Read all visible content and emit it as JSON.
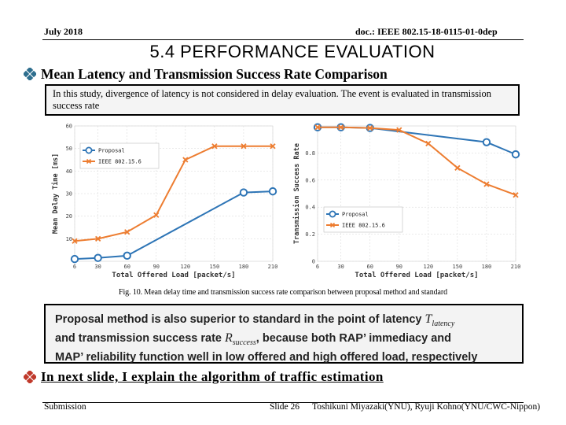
{
  "header": {
    "date": "July 2018",
    "doc_id": "doc.: IEEE 802.15-18-0115-01-0dep"
  },
  "title": "5.4   PERFORMANCE EVALUATION",
  "subtitle": "Mean Latency and Transmission Success Rate Comparison",
  "note": "In this study, divergence of latency is not considered in delay evaluation. The event is evaluated in transmission success rate",
  "figure_caption": "Fig. 10. Mean delay time and transmission success rate comparison between proposal method and standard",
  "claim": {
    "line1": "Proposal method is also superior to standard in the point of latency ",
    "var1": "T",
    "var1_sub": "latency",
    "line2": "and transmission success rate ",
    "var2": "R",
    "var2_sub": "success",
    "line2_tail": ", because both RAP’ immediacy and",
    "line3": "MAP’ reliability function well in low offered and high offered load, respectively"
  },
  "next_slide": "In next slide, I explain the algorithm of traffic estimation",
  "footer": {
    "left": "Submission",
    "slide": "Slide 26",
    "authors": "Toshikuni Miyazaki(YNU), Ryuji Kohno(YNU/CWC-Nippon)"
  },
  "colors": {
    "proposal": "#2e75b6",
    "standard": "#ed7d31",
    "diamond": "#2e6e8e"
  },
  "chart_data": [
    {
      "type": "line",
      "title": "",
      "xlabel": "Total Offered Load [packet/s]",
      "ylabel": "Mean Delay Time [ms]",
      "x": [
        6,
        30,
        60,
        90,
        120,
        150,
        180,
        210
      ],
      "xlim": [
        6,
        210
      ],
      "ylim": [
        0,
        60
      ],
      "yticks": [
        10,
        20,
        30,
        40,
        50,
        60
      ],
      "legend_position": "top-left",
      "series": [
        {
          "name": "Proposal",
          "x": [
            6,
            30,
            60,
            180,
            210
          ],
          "values": [
            1,
            1.5,
            2.5,
            30.5,
            31
          ]
        },
        {
          "name": "IEEE 802.15.6",
          "x": [
            6,
            30,
            60,
            90,
            120,
            150,
            180,
            210
          ],
          "values": [
            9,
            10,
            13,
            20.5,
            45,
            51,
            51,
            51
          ]
        }
      ]
    },
    {
      "type": "line",
      "title": "",
      "xlabel": "Total Offered Load [packet/s]",
      "ylabel": "Transmission Success Rate",
      "x": [
        6,
        30,
        60,
        90,
        120,
        150,
        180,
        210
      ],
      "xlim": [
        6,
        210
      ],
      "ylim": [
        0,
        1
      ],
      "yticks": [
        0,
        0.2,
        0.4,
        0.6,
        0.8
      ],
      "legend_position": "bottom-left",
      "series": [
        {
          "name": "Proposal",
          "x": [
            6,
            30,
            60,
            180,
            210
          ],
          "values": [
            0.99,
            0.99,
            0.985,
            0.88,
            0.79
          ]
        },
        {
          "name": "IEEE 802.15.6",
          "x": [
            6,
            30,
            60,
            90,
            120,
            150,
            180,
            210
          ],
          "values": [
            0.99,
            0.99,
            0.985,
            0.97,
            0.87,
            0.69,
            0.57,
            0.49
          ]
        }
      ]
    }
  ]
}
